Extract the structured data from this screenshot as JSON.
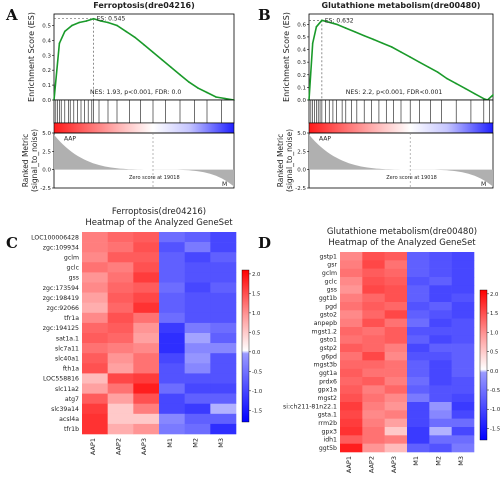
{
  "chart_data": [
    {
      "panel": "A",
      "type": "line",
      "title": "Ferroptosis(dre04216)",
      "ylabel": "Enrichment Score (ES)",
      "ylim": [
        0,
        0.55
      ],
      "yticks": [
        0.0,
        0.1,
        0.2,
        0.3,
        0.4,
        0.5
      ],
      "es_label": "ES: 0.545",
      "stats": "NES: 1.93, p<0.001, FDR: 0.0",
      "x": [
        0,
        0.03,
        0.06,
        0.1,
        0.14,
        0.18,
        0.22,
        0.26,
        0.3,
        0.35,
        0.4,
        0.45,
        0.5,
        0.55,
        0.6,
        0.65,
        0.7,
        0.75,
        0.8,
        0.85,
        0.9,
        0.95,
        1.0
      ],
      "es": [
        0.0,
        0.38,
        0.46,
        0.5,
        0.52,
        0.53,
        0.545,
        0.53,
        0.52,
        0.5,
        0.46,
        0.42,
        0.37,
        0.32,
        0.27,
        0.22,
        0.17,
        0.12,
        0.08,
        0.05,
        0.02,
        0.01,
        0.0
      ],
      "peak_x": 0.22,
      "hits": [
        0.01,
        0.02,
        0.03,
        0.04,
        0.06,
        0.08,
        0.09,
        0.11,
        0.13,
        0.15,
        0.17,
        0.19,
        0.21,
        0.22,
        0.25,
        0.3,
        0.35,
        0.42,
        0.48,
        0.55,
        0.62,
        0.7,
        0.78,
        0.85,
        0.93
      ],
      "metric_ylabel": "Ranked Metric\n(signal_to_noise)",
      "metric_ylim": [
        -2.5,
        5.0
      ],
      "metric_yticks": [
        5.0,
        2.5,
        0.0,
        -2.5
      ],
      "pos_label": "AAP",
      "neg_label": "M",
      "zero_label": "Zero score at 19018",
      "zero_x": 0.55
    },
    {
      "panel": "B",
      "type": "line",
      "title": "Glutathione metabolism(dre00480)",
      "ylabel": "Enrichment Score (ES)",
      "ylim": [
        0,
        0.65
      ],
      "yticks": [
        0.0,
        0.1,
        0.2,
        0.3,
        0.4,
        0.5,
        0.6
      ],
      "es_label": "ES: 0.632",
      "stats": "NES: 2.2, p<0.001, FDR<0.001",
      "x": [
        0,
        0.02,
        0.04,
        0.07,
        0.1,
        0.15,
        0.2,
        0.25,
        0.3,
        0.35,
        0.4,
        0.45,
        0.5,
        0.55,
        0.6,
        0.65,
        0.7,
        0.75,
        0.8,
        0.85,
        0.9,
        0.95,
        0.97,
        1.0
      ],
      "es": [
        0.0,
        0.45,
        0.58,
        0.632,
        0.62,
        0.6,
        0.57,
        0.54,
        0.51,
        0.48,
        0.45,
        0.42,
        0.38,
        0.34,
        0.3,
        0.26,
        0.22,
        0.17,
        0.13,
        0.09,
        0.05,
        0.01,
        0.0,
        0.04
      ],
      "peak_x": 0.07,
      "hits": [
        0.01,
        0.02,
        0.03,
        0.04,
        0.05,
        0.06,
        0.07,
        0.09,
        0.11,
        0.13,
        0.15,
        0.18,
        0.2,
        0.23,
        0.26,
        0.3,
        0.34,
        0.38,
        0.42,
        0.46,
        0.5,
        0.55,
        0.6,
        0.66,
        0.72,
        0.8,
        0.88,
        0.95,
        0.98
      ],
      "metric_ylabel": "Ranked Metric\n(signal_to_noise)",
      "metric_ylim": [
        -2.5,
        5.0
      ],
      "metric_yticks": [
        5.0,
        2.5,
        0.0,
        -2.5
      ],
      "pos_label": "AAP",
      "neg_label": "M",
      "zero_label": "Zero score at 19018",
      "zero_x": 0.55
    },
    {
      "panel": "C",
      "type": "heatmap",
      "title": "Ferroptosis(dre04216)",
      "subtitle": "Heatmap of the Analyzed GeneSet",
      "columns": [
        "AAP1",
        "AAP2",
        "AAP3",
        "M1",
        "M2",
        "M3"
      ],
      "rows": [
        "LOC100006428",
        "zgc:109934",
        "gclm",
        "gclc",
        "gss",
        "zgc:173594",
        "zgc:198419",
        "zgc:92066",
        "tfr1a",
        "zgc:194125",
        "sat1a.1",
        "slc7a11",
        "slc40a1",
        "fth1a",
        "LOC558816",
        "slc11a2",
        "atg7",
        "slc39a14",
        "acsl4a",
        "tfr1b"
      ],
      "values": [
        [
          0.9,
          1.1,
          1.2,
          -0.9,
          -1.0,
          -1.2
        ],
        [
          0.9,
          1.0,
          1.3,
          -1.1,
          -0.8,
          -1.2
        ],
        [
          0.8,
          1.2,
          1.2,
          -1.0,
          -1.2,
          -1.0
        ],
        [
          1.0,
          0.9,
          1.3,
          -1.0,
          -1.1,
          -1.1
        ],
        [
          0.7,
          1.0,
          1.5,
          -1.0,
          -1.1,
          -1.1
        ],
        [
          0.8,
          1.1,
          1.2,
          -0.9,
          -1.2,
          -1.0
        ],
        [
          0.6,
          1.2,
          1.4,
          -1.0,
          -1.1,
          -1.1
        ],
        [
          0.5,
          1.1,
          1.6,
          -1.0,
          -1.1,
          -1.1
        ],
        [
          0.8,
          1.3,
          1.0,
          -0.9,
          -1.1,
          -1.1
        ],
        [
          1.1,
          1.2,
          0.7,
          -1.3,
          -0.8,
          -0.9
        ],
        [
          1.2,
          1.1,
          0.6,
          -1.4,
          -0.5,
          -1.0
        ],
        [
          1.0,
          0.9,
          0.8,
          -1.4,
          -0.7,
          -0.7
        ],
        [
          1.2,
          0.7,
          1.0,
          -1.2,
          -0.6,
          -1.1
        ],
        [
          1.3,
          0.6,
          1.0,
          -1.1,
          -0.7,
          -1.1
        ],
        [
          0.4,
          1.4,
          1.5,
          -1.1,
          -1.1,
          -1.1
        ],
        [
          0.6,
          1.0,
          1.8,
          -0.9,
          -1.2,
          -1.2
        ],
        [
          1.2,
          0.6,
          1.3,
          -1.2,
          -1.0,
          -1.0
        ],
        [
          1.5,
          0.3,
          0.9,
          -1.2,
          -1.3,
          -0.4
        ],
        [
          1.6,
          0.3,
          0.3,
          -0.7,
          -1.0,
          -1.0
        ],
        [
          1.6,
          0.5,
          0.7,
          -0.8,
          -0.9,
          -1.4
        ]
      ],
      "colorbar_ticks": [
        2.0,
        1.5,
        1.0,
        0.5,
        0.0,
        -0.5,
        -1.0,
        -1.5
      ],
      "vmin": -1.8,
      "vmax": 2.1
    },
    {
      "panel": "D",
      "type": "heatmap",
      "title": "Glutathione metabolism(dre00480)",
      "subtitle": "Heatmap of the Analyzed GeneSet",
      "columns": [
        "AAP1",
        "AAP2",
        "AAP3",
        "M1",
        "M2",
        "M3"
      ],
      "rows": [
        "gstp1",
        "gsr",
        "gclm",
        "gclc",
        "gss",
        "ggt1b",
        "pgd",
        "gsto2",
        "anpepb",
        "mgst1.2",
        "gsto1",
        "gstp2",
        "g6pd",
        "mgst3b",
        "ggt1a",
        "prdx6",
        "gpx1a",
        "mgst2",
        "si:ch211-81n22.1",
        "gsta.1",
        "rrm2b",
        "gpx3",
        "idh1",
        "ggt5b"
      ],
      "values": [
        [
          0.8,
          1.3,
          1.2,
          -1.0,
          -1.1,
          -1.2
        ],
        [
          0.9,
          1.4,
          1.0,
          -1.0,
          -1.1,
          -1.2
        ],
        [
          1.0,
          1.2,
          1.1,
          -1.0,
          -1.1,
          -1.2
        ],
        [
          0.8,
          1.3,
          1.2,
          -1.1,
          -1.0,
          -1.2
        ],
        [
          0.7,
          1.4,
          1.3,
          -1.0,
          -1.2,
          -1.2
        ],
        [
          0.9,
          1.1,
          1.3,
          -1.0,
          -1.2,
          -1.1
        ],
        [
          1.0,
          1.2,
          1.1,
          -1.1,
          -1.0,
          -1.2
        ],
        [
          0.8,
          1.1,
          1.4,
          -1.0,
          -1.1,
          -1.2
        ],
        [
          0.9,
          1.3,
          1.0,
          -0.9,
          -1.2,
          -1.1
        ],
        [
          1.1,
          1.0,
          1.2,
          -1.1,
          -1.1,
          -1.1
        ],
        [
          1.0,
          1.1,
          1.2,
          -1.0,
          -1.2,
          -1.1
        ],
        [
          1.2,
          1.1,
          0.9,
          -1.2,
          -1.0,
          -1.0
        ],
        [
          1.0,
          1.4,
          0.8,
          -1.1,
          -1.1,
          -1.0
        ],
        [
          1.1,
          1.1,
          1.0,
          -1.0,
          -1.2,
          -1.0
        ],
        [
          1.2,
          1.0,
          1.0,
          -1.0,
          -1.2,
          -1.0
        ],
        [
          1.1,
          1.2,
          0.9,
          -0.9,
          -1.2,
          -1.1
        ],
        [
          1.2,
          0.9,
          1.1,
          -1.0,
          -1.1,
          -1.1
        ],
        [
          1.3,
          1.0,
          0.8,
          -0.8,
          -1.1,
          -1.2
        ],
        [
          1.5,
          0.9,
          0.7,
          -1.2,
          -0.6,
          -1.3
        ],
        [
          1.4,
          0.8,
          0.9,
          -1.2,
          -0.7,
          -1.2
        ],
        [
          1.5,
          0.9,
          0.6,
          -1.2,
          -0.9,
          -0.9
        ],
        [
          1.6,
          1.0,
          0.3,
          -1.3,
          -0.4,
          -1.2
        ],
        [
          1.2,
          1.0,
          0.9,
          -1.3,
          -0.9,
          -0.9
        ],
        [
          1.8,
          0.7,
          0.4,
          -1.0,
          -1.1,
          -0.8
        ]
      ],
      "colorbar_ticks": [
        2.0,
        1.5,
        1.0,
        0.5,
        0.0,
        -0.5,
        -1.0,
        -1.5
      ],
      "vmin": -1.8,
      "vmax": 2.1
    }
  ],
  "colors": {
    "es_line": "#1a9a2a",
    "positive": "#e41a1c",
    "negative": "#2129e6",
    "metric_fill": "#b0b0b0",
    "pos_label": "#d62728",
    "neg_label": "#1f3fbf"
  }
}
